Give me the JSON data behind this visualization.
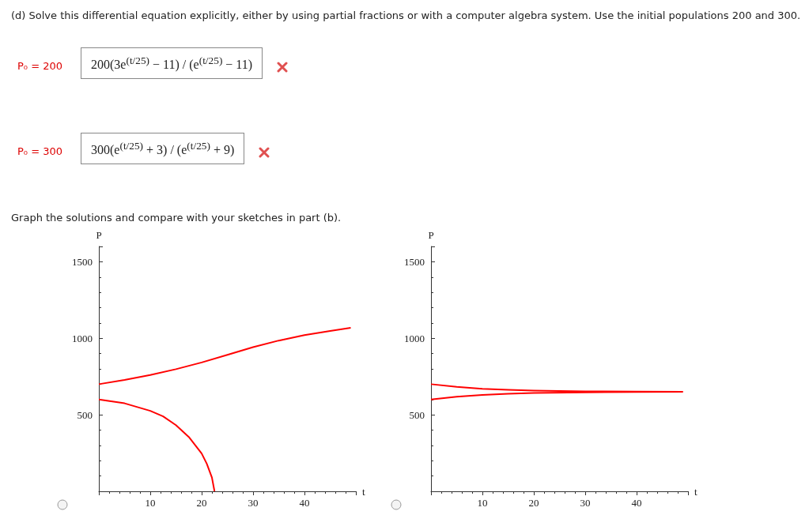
{
  "chart_data": [
    {
      "type": "line",
      "title": "(d) Solve this differential equation explicitly, either by using partial fractions or with a computer algebra system. Use the initial populations 200 and 300.",
      "subtitle": "Graph the solutions and compare with your sketches in part (b).",
      "annotations": [
        "P₀ = 200",
        "200(3e$^{(t/25)}$ − 11) / (e$^{(t/25)}$ − 11)",
        "P₀ = 300",
        "300(e$^{(t/25)}$ + 3) / (e$^{(t/25)}$ + 9)"
      ],
      "xlabel": "t",
      "ylabel": "P",
      "xlim": [
        0,
        50
      ],
      "ylim": [
        0,
        1600
      ],
      "xticks": [
        10,
        20,
        30,
        40
      ],
      "yticks": [
        500,
        1000,
        1500
      ],
      "grid": false,
      "marker": "none",
      "series": [
        {
          "color": "#ff0000",
          "x": [
            0,
            5,
            10,
            15,
            20,
            25,
            30,
            35,
            40,
            45,
            49
          ],
          "values": [
            700,
            728,
            760,
            798,
            842,
            892,
            942,
            985,
            1021,
            1048,
            1068
          ]
        },
        {
          "color": "#ff0000",
          "x": [
            0,
            5,
            10,
            12.5,
            15,
            17.5,
            20,
            21,
            22,
            22.5
          ],
          "values": [
            600,
            575,
            526,
            490,
            432,
            355,
            247,
            180,
            90,
            0
          ]
        }
      ]
    },
    {
      "type": "line",
      "xlabel": "t",
      "ylabel": "P",
      "xlim": [
        0,
        50
      ],
      "ylim": [
        0,
        1600
      ],
      "xticks": [
        10,
        20,
        30,
        40
      ],
      "yticks": [
        500,
        1000,
        1500
      ],
      "grid": false,
      "marker": "none",
      "series": [
        {
          "color": "#ff0000",
          "x": [
            0,
            5,
            10,
            15,
            20,
            30,
            40,
            49
          ],
          "values": [
            700,
            682,
            670,
            663,
            658,
            653,
            651,
            650
          ]
        },
        {
          "color": "#ff0000",
          "x": [
            0,
            5,
            10,
            15,
            20,
            30,
            40,
            49
          ],
          "values": [
            600,
            618,
            630,
            638,
            643,
            647,
            649,
            650
          ]
        }
      ]
    }
  ]
}
